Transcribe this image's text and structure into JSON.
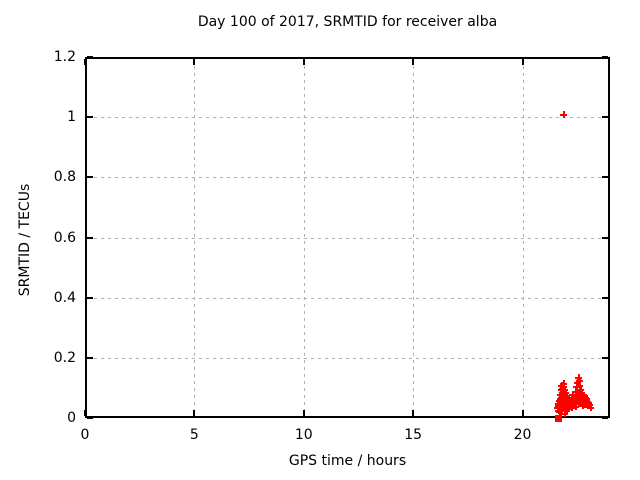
{
  "chart_data": {
    "type": "scatter",
    "title": "Day 100 of 2017, SRMTID for receiver alba",
    "xlabel": "GPS time / hours",
    "ylabel": "SRMTID / TECUs",
    "xlim": [
      0,
      24
    ],
    "ylim": [
      0,
      1.2
    ],
    "xticks": [
      0,
      5,
      10,
      15,
      20
    ],
    "yticks": [
      0,
      0.2,
      0.4,
      0.6,
      0.8,
      1,
      1.2
    ],
    "grid": true,
    "legend_position": "none",
    "marker": "plus",
    "point_color": "#ff0000",
    "grid_color": "#b0b0b0",
    "axis_color": "#000000",
    "background_color": "#ffffff",
    "outlier_point": [
      21.85,
      1.01
    ],
    "axis_square_point": [
      21.62,
      0.0
    ],
    "points": [
      [
        21.58,
        0.035
      ],
      [
        21.6,
        0.05
      ],
      [
        21.62,
        0.028
      ],
      [
        21.64,
        0.042
      ],
      [
        21.65,
        0.06
      ],
      [
        21.66,
        0.022
      ],
      [
        21.68,
        0.048
      ],
      [
        21.7,
        0.035
      ],
      [
        21.7,
        0.065
      ],
      [
        21.72,
        0.055
      ],
      [
        21.73,
        0.08
      ],
      [
        21.74,
        0.03
      ],
      [
        21.75,
        0.095
      ],
      [
        21.75,
        0.045
      ],
      [
        21.76,
        0.07
      ],
      [
        21.77,
        0.11
      ],
      [
        21.78,
        0.058
      ],
      [
        21.79,
        0.088
      ],
      [
        21.8,
        0.04
      ],
      [
        21.8,
        0.072
      ],
      [
        21.81,
        0.1
      ],
      [
        21.82,
        0.052
      ],
      [
        21.83,
        0.115
      ],
      [
        21.84,
        0.065
      ],
      [
        21.85,
        0.09
      ],
      [
        21.85,
        0.035
      ],
      [
        21.86,
        0.075
      ],
      [
        21.87,
        0.105
      ],
      [
        21.88,
        0.048
      ],
      [
        21.89,
        0.082
      ],
      [
        21.9,
        0.06
      ],
      [
        21.9,
        0.018
      ],
      [
        21.91,
        0.095
      ],
      [
        21.92,
        0.042
      ],
      [
        21.93,
        0.07
      ],
      [
        21.94,
        0.055
      ],
      [
        21.95,
        0.085
      ],
      [
        21.96,
        0.038
      ],
      [
        21.97,
        0.062
      ],
      [
        21.98,
        0.05
      ],
      [
        22.0,
        0.075
      ],
      [
        22.0,
        0.025
      ],
      [
        22.02,
        0.045
      ],
      [
        22.04,
        0.058
      ],
      [
        22.06,
        0.035
      ],
      [
        22.08,
        0.065
      ],
      [
        22.1,
        0.05
      ],
      [
        22.12,
        0.04
      ],
      [
        22.15,
        0.06
      ],
      [
        22.18,
        0.048
      ],
      [
        22.2,
        0.07
      ],
      [
        22.22,
        0.035
      ],
      [
        22.25,
        0.055
      ],
      [
        22.28,
        0.08
      ],
      [
        22.3,
        0.045
      ],
      [
        22.32,
        0.065
      ],
      [
        22.35,
        0.052
      ],
      [
        22.38,
        0.075
      ],
      [
        22.4,
        0.04
      ],
      [
        22.42,
        0.09
      ],
      [
        22.44,
        0.058
      ],
      [
        22.46,
        0.105
      ],
      [
        22.48,
        0.07
      ],
      [
        22.5,
        0.12
      ],
      [
        22.52,
        0.05
      ],
      [
        22.54,
        0.135
      ],
      [
        22.55,
        0.085
      ],
      [
        22.56,
        0.11
      ],
      [
        22.58,
        0.065
      ],
      [
        22.6,
        0.125
      ],
      [
        22.62,
        0.095
      ],
      [
        22.64,
        0.075
      ],
      [
        22.66,
        0.055
      ],
      [
        22.68,
        0.088
      ],
      [
        22.7,
        0.042
      ],
      [
        22.72,
        0.068
      ],
      [
        22.75,
        0.052
      ],
      [
        22.78,
        0.078
      ],
      [
        22.8,
        0.06
      ],
      [
        22.82,
        0.045
      ],
      [
        22.85,
        0.07
      ],
      [
        22.88,
        0.055
      ],
      [
        22.9,
        0.065
      ],
      [
        22.92,
        0.048
      ],
      [
        22.95,
        0.058
      ],
      [
        22.98,
        0.042
      ],
      [
        23.0,
        0.052
      ],
      [
        23.05,
        0.045
      ],
      [
        23.1,
        0.038
      ]
    ]
  }
}
